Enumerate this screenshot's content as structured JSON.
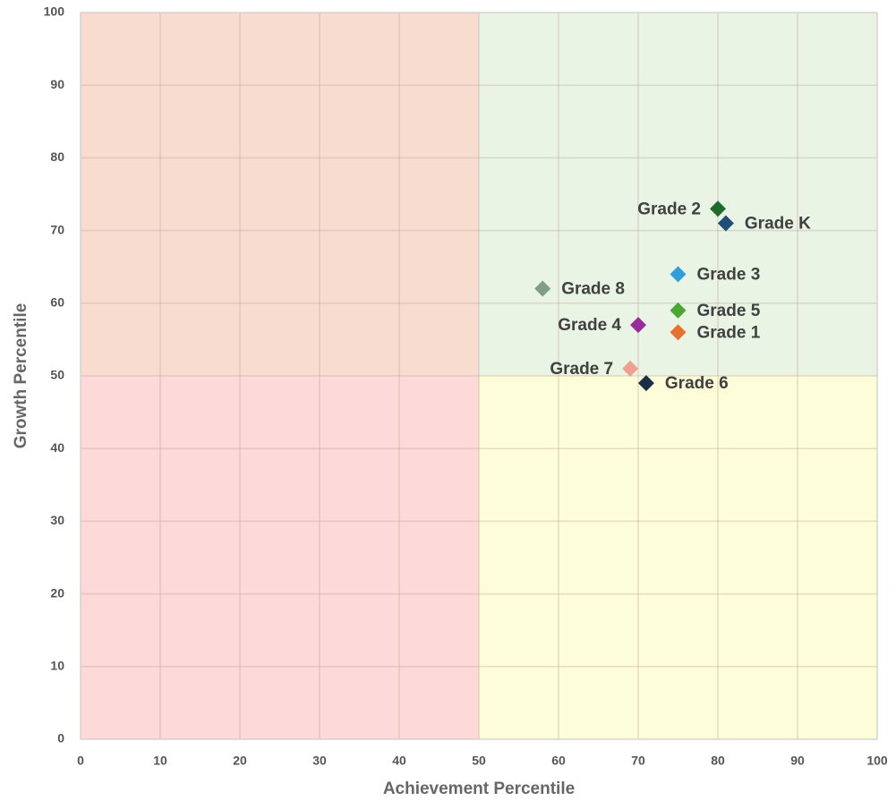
{
  "chart_data": {
    "type": "scatter",
    "x_label": "Achievement Percentile",
    "y_label": "Growth Percentile",
    "xlim": [
      0,
      100
    ],
    "ylim": [
      0,
      100
    ],
    "xticks": [
      0,
      10,
      20,
      30,
      40,
      50,
      60,
      70,
      80,
      90,
      100
    ],
    "yticks": [
      0,
      10,
      20,
      30,
      40,
      50,
      60,
      70,
      80,
      90,
      100
    ],
    "grid": true,
    "quadrants": {
      "x": 50,
      "y": 50,
      "colors": {
        "top_left": "#f8dccf",
        "top_right": "#e9f4e5",
        "bottom_left": "#fdd9d9",
        "bottom_right": "#fdfdd9"
      }
    },
    "series": [
      {
        "name": "Grade 2",
        "color": "#1f6b2c",
        "x": [
          80
        ],
        "y": [
          73
        ]
      },
      {
        "name": "Grade K",
        "color": "#1f4e79",
        "x": [
          81
        ],
        "y": [
          71
        ]
      },
      {
        "name": "Grade 3",
        "color": "#2e9fd8",
        "x": [
          75
        ],
        "y": [
          64
        ]
      },
      {
        "name": "Grade 8",
        "color": "#7f9f8a",
        "x": [
          58
        ],
        "y": [
          62
        ]
      },
      {
        "name": "Grade 5",
        "color": "#4aa832",
        "x": [
          75
        ],
        "y": [
          59
        ]
      },
      {
        "name": "Grade 4",
        "color": "#9b2a9b",
        "x": [
          70
        ],
        "y": [
          57
        ]
      },
      {
        "name": "Grade 1",
        "color": "#e8712f",
        "x": [
          75
        ],
        "y": [
          56
        ]
      },
      {
        "name": "Grade 7",
        "color": "#f0a090",
        "x": [
          69
        ],
        "y": [
          51
        ]
      },
      {
        "name": "Grade 6",
        "color": "#1a2f45",
        "x": [
          71
        ],
        "y": [
          49
        ]
      }
    ]
  }
}
